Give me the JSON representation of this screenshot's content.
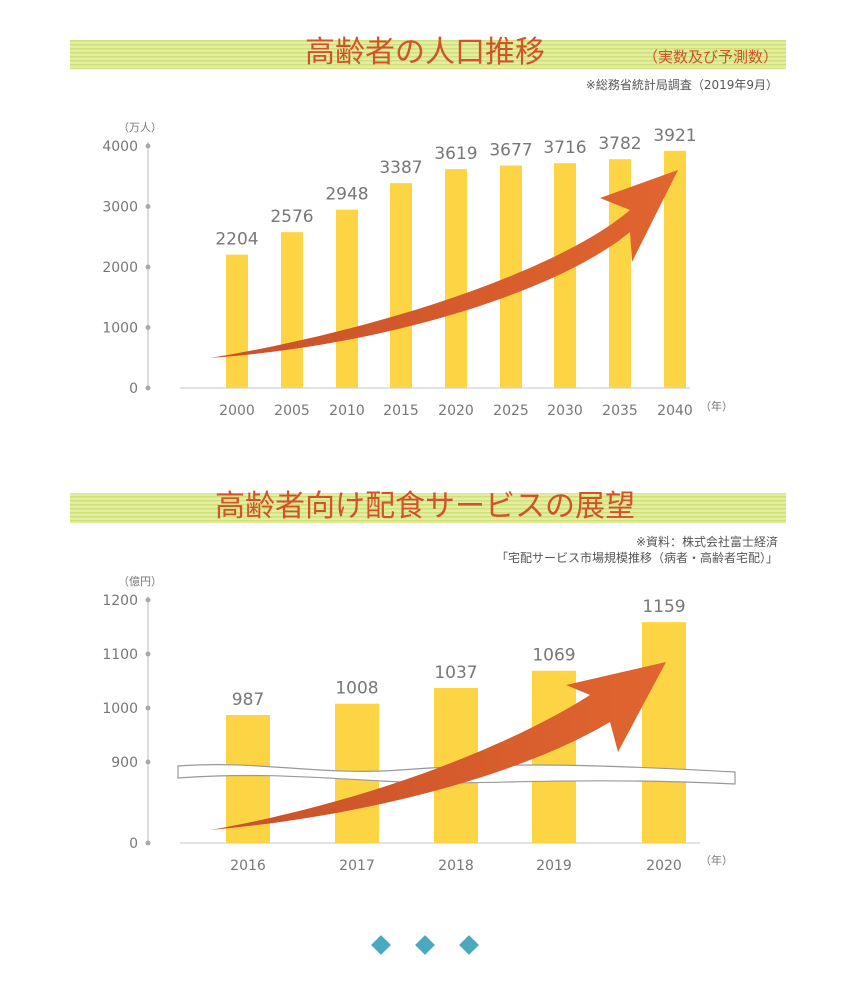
{
  "chart_data": [
    {
      "type": "bar",
      "title": "高齢者の人口推移",
      "subtitle": "（実数及び予測数）",
      "source": "※総務省統計局調査（2019年9月）",
      "ylabel": "（万人）",
      "xlabel": "（年）",
      "categories": [
        "2000",
        "2005",
        "2010",
        "2015",
        "2020",
        "2025",
        "2030",
        "2035",
        "2040"
      ],
      "values": [
        2204,
        2576,
        2948,
        3387,
        3619,
        3677,
        3716,
        3782,
        3921
      ],
      "yticks": [
        0,
        1000,
        2000,
        3000,
        4000
      ],
      "ylim": [
        0,
        4000
      ]
    },
    {
      "type": "bar",
      "title": "高齢者向け配食サービスの展望",
      "source_line1": "※資料：株式会社富士経済",
      "source_line2": "「宅配サービス市場規模推移（病者・高齢者宅配）」",
      "ylabel": "（億円）",
      "xlabel": "（年）",
      "categories": [
        "2016",
        "2017",
        "2018",
        "2019",
        "2020"
      ],
      "values": [
        987,
        1008,
        1037,
        1069,
        1159
      ],
      "yticks": [
        0,
        900,
        1000,
        1100,
        1200
      ],
      "ylim": [
        0,
        1200
      ],
      "axis_break": 900
    }
  ],
  "colors": {
    "bar": "#fdd444",
    "title": "#d2522a",
    "band": "#dce98f",
    "arrow": "#d65a2c",
    "axis": "#bbbbbb",
    "text": "#777777",
    "nav": "#4aa8bf"
  },
  "nav": {
    "count": 3
  }
}
